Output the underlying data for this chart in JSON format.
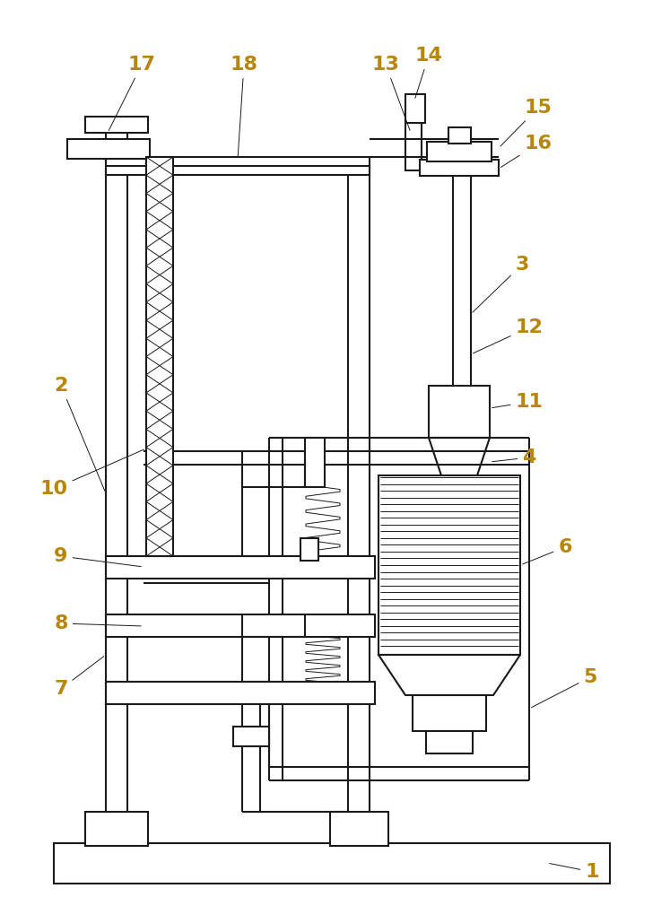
{
  "bg_color": "#ffffff",
  "line_color": "#1a1a1a",
  "label_color": "#b8860b",
  "lw": 1.5,
  "lw_thin": 0.7,
  "label_fs": 16,
  "fig_w": 7.47,
  "fig_h": 10.0
}
